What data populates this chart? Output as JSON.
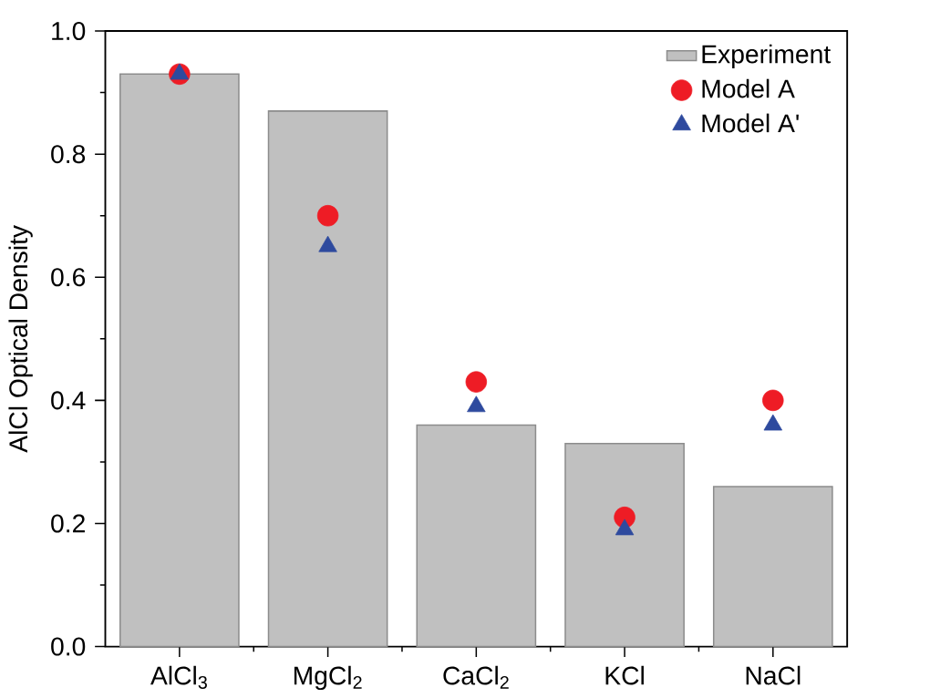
{
  "chart_data": {
    "type": "bar",
    "ylabel": "AlCl Optical Density",
    "categories": [
      "AlCl$_{3}$",
      "MgCl$_{2}$",
      "CaCl$_{2}$",
      "KCl",
      "NaCl"
    ],
    "series": [
      {
        "name": "Experiment",
        "color": "#c0c0c0",
        "values": [
          0.93,
          0.87,
          0.36,
          0.33,
          0.26
        ]
      },
      {
        "name": "Model A",
        "type": "scatter",
        "marker": "circle",
        "color": "#ee1c25",
        "values": [
          0.93,
          0.7,
          0.43,
          0.21,
          0.4
        ]
      },
      {
        "name": "Model A'",
        "type": "scatter",
        "marker": "triangle",
        "color": "#2e4a9e",
        "values": [
          0.93,
          0.65,
          0.39,
          0.19,
          0.36
        ]
      }
    ],
    "ylim": [
      0,
      1.0
    ],
    "yticks": [
      {
        "value": 0,
        "label": "0.0"
      },
      {
        "value": 0.2,
        "label": "0.2"
      },
      {
        "value": 0.4,
        "label": "0.4"
      },
      {
        "value": 0.6,
        "label": "0.6"
      },
      {
        "value": 0.8,
        "label": "0.8"
      },
      {
        "value": 1.0,
        "label": "1.0"
      }
    ],
    "legend": "top right"
  }
}
